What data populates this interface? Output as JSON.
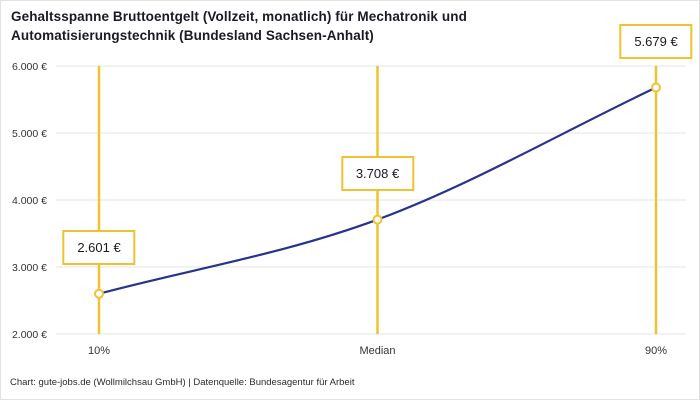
{
  "title": {
    "lines": [
      "Gehaltsspanne Bruttoentgelt (Vollzeit, monatlich) für Mechatronik und",
      "Automatisierungstechnik (Bundesland Sachsen-Anhalt)"
    ]
  },
  "footer": {
    "text": "Chart: gute-jobs.de (Wollmilchsau GmbH) | Datenquelle: Bundesagentur für Arbeit"
  },
  "chart_data": {
    "type": "line",
    "title": "Gehaltsspanne Bruttoentgelt (Vollzeit, monatlich) für Mechatronik und Automatisierungstechnik (Bundesland Sachsen-Anhalt)",
    "categories": [
      "10%",
      "Median",
      "90%"
    ],
    "values": [
      2601,
      3708,
      5679
    ],
    "value_labels": [
      "2.601 €",
      "3.708 €",
      "5.679 €"
    ],
    "xlabel": "",
    "ylabel": "",
    "ylim": [
      2000,
      6000
    ],
    "yticks": [
      {
        "value": 2000,
        "label": "2.000 €"
      },
      {
        "value": 3000,
        "label": "3.000 €"
      },
      {
        "value": 4000,
        "label": "4.000 €"
      },
      {
        "value": 5000,
        "label": "5.000 €"
      },
      {
        "value": 6000,
        "label": "6.000 €"
      }
    ],
    "grid": true,
    "legend": false,
    "colors": {
      "line": "#27348B",
      "marker": "#F0C232",
      "grid": "#E4E4E4",
      "callout_bg": "#FFFFFF"
    }
  }
}
